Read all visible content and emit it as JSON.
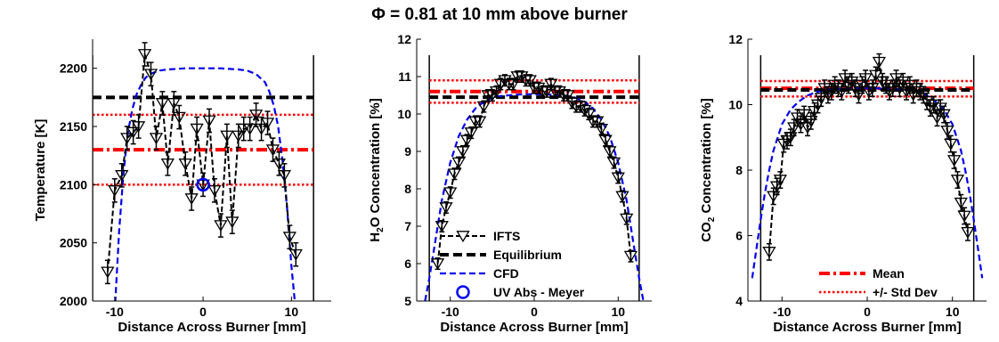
{
  "figure": {
    "title": "Φ = 0.81 at 10 mm above burner"
  },
  "colors": {
    "ifts": "#000000",
    "equilibrium": "#000000",
    "cfd": "#0000ee",
    "uv": "#0000ee",
    "mean": "#ff0000",
    "std": "#ff0000"
  },
  "chart_data": [
    {
      "type": "line",
      "xlabel": "Distance Across Burner [mm]",
      "ylabel": "Temperature [K]",
      "xlim": [
        -12.5,
        14.5
      ],
      "ylim": [
        2000,
        2225
      ],
      "xticks": [
        -10,
        0,
        10
      ],
      "yticks": [
        2000,
        2050,
        2100,
        2150,
        2200
      ],
      "burner_edges": [
        -12.5,
        12.5
      ],
      "equilibrium": 2175,
      "mean": 2130,
      "std_band": [
        2100,
        2160
      ],
      "uv_abs": {
        "x": 0,
        "y": 2100
      },
      "ifts": {
        "x": [
          -10.8,
          -10.0,
          -9.2,
          -8.6,
          -7.9,
          -7.3,
          -6.6,
          -5.9,
          -5.3,
          -4.6,
          -4.0,
          -3.3,
          -2.7,
          -2.0,
          -1.3,
          -0.7,
          0.0,
          0.7,
          1.3,
          2.0,
          2.7,
          3.3,
          4.0,
          4.6,
          5.3,
          6.0,
          6.6,
          7.3,
          7.9,
          8.6,
          9.2,
          9.8,
          10.5
        ],
        "y": [
          2025,
          2095,
          2108,
          2140,
          2145,
          2150,
          2212,
          2195,
          2140,
          2170,
          2118,
          2170,
          2158,
          2118,
          2088,
          2148,
          2100,
          2155,
          2095,
          2065,
          2142,
          2068,
          2142,
          2148,
          2148,
          2160,
          2148,
          2153,
          2130,
          2118,
          2108,
          2055,
          2040
        ],
        "err": [
          10,
          10,
          10,
          10,
          10,
          10,
          10,
          10,
          10,
          10,
          10,
          10,
          10,
          10,
          10,
          10,
          10,
          10,
          10,
          10,
          10,
          10,
          10,
          10,
          10,
          10,
          10,
          10,
          10,
          10,
          10,
          10,
          10
        ]
      },
      "cfd": {
        "x": [
          -10.0,
          -9.5,
          -9.0,
          -8.5,
          -8.0,
          -7.5,
          -7.0,
          -6.5,
          -6.0,
          -5.0,
          -4.0,
          -2.0,
          0.0,
          2.0,
          4.0,
          5.0,
          6.0,
          7.0,
          7.5,
          8.0,
          8.5,
          9.0,
          9.5,
          10.0,
          10.5
        ],
        "y": [
          1990,
          2060,
          2110,
          2145,
          2165,
          2178,
          2186,
          2192,
          2195,
          2198,
          2199,
          2200,
          2200,
          2200,
          2199,
          2198,
          2195,
          2188,
          2180,
          2168,
          2150,
          2120,
          2080,
          2030,
          1990
        ]
      }
    },
    {
      "type": "line",
      "xlabel": "Distance Across Burner [mm]",
      "ylabel": "H2O Concentration [%]",
      "ylabel_main": "H",
      "ylabel_sub": "2",
      "ylabel_rest": "O Concentration [%]",
      "xlim": [
        -14,
        14
      ],
      "ylim": [
        5,
        12
      ],
      "xticks": [
        -10,
        0,
        10
      ],
      "yticks": [
        5,
        6,
        7,
        8,
        9,
        10,
        11,
        12
      ],
      "burner_edges": [
        -12.5,
        12.5
      ],
      "equilibrium": 10.45,
      "mean": 10.6,
      "std_band": [
        10.3,
        10.9
      ],
      "ifts": {
        "x": [
          -11.5,
          -11.0,
          -10.5,
          -10.0,
          -9.5,
          -9.0,
          -8.5,
          -8.0,
          -7.5,
          -7.0,
          -6.5,
          -6.0,
          -5.5,
          -5.0,
          -4.5,
          -4.0,
          -3.5,
          -3.0,
          -2.5,
          -2.0,
          -1.5,
          -1.0,
          -0.5,
          0.0,
          0.5,
          1.0,
          1.5,
          2.0,
          2.5,
          3.0,
          3.5,
          4.0,
          4.5,
          5.0,
          5.5,
          6.0,
          6.5,
          7.0,
          7.5,
          8.0,
          8.5,
          9.0,
          9.5,
          10.0,
          10.5,
          11.0,
          11.5
        ],
        "y": [
          6.0,
          7.0,
          7.5,
          7.9,
          8.4,
          8.7,
          9.0,
          9.3,
          9.5,
          9.8,
          9.8,
          10.2,
          10.5,
          10.5,
          10.6,
          10.8,
          10.9,
          10.8,
          10.8,
          11.0,
          11.0,
          10.9,
          10.9,
          10.7,
          10.7,
          10.6,
          10.6,
          10.8,
          10.6,
          10.6,
          10.5,
          10.5,
          10.3,
          10.2,
          10.2,
          10.1,
          10.0,
          9.8,
          9.8,
          9.6,
          9.3,
          9.0,
          8.7,
          8.3,
          7.8,
          7.2,
          6.2
        ],
        "err": [
          0.15,
          0.15,
          0.15,
          0.15,
          0.15,
          0.15,
          0.15,
          0.15,
          0.15,
          0.15,
          0.15,
          0.15,
          0.15,
          0.15,
          0.15,
          0.15,
          0.15,
          0.15,
          0.15,
          0.15,
          0.15,
          0.15,
          0.15,
          0.15,
          0.15,
          0.15,
          0.15,
          0.15,
          0.15,
          0.15,
          0.15,
          0.15,
          0.15,
          0.15,
          0.15,
          0.15,
          0.15,
          0.15,
          0.15,
          0.15,
          0.15,
          0.15,
          0.15,
          0.15,
          0.15,
          0.15,
          0.15
        ]
      },
      "cfd": {
        "x": [
          -13.0,
          -12.5,
          -12.0,
          -11.5,
          -11.0,
          -10.0,
          -9.0,
          -8.0,
          -7.0,
          -6.0,
          -5.0,
          -4.0,
          -2.0,
          0.0,
          2.0,
          4.0,
          5.0,
          6.0,
          7.0,
          8.0,
          9.0,
          10.0,
          11.0,
          11.5,
          12.0,
          12.5,
          13.0
        ],
        "y": [
          5.0,
          5.6,
          6.3,
          7.0,
          7.7,
          8.7,
          9.4,
          9.85,
          10.15,
          10.33,
          10.43,
          10.48,
          10.52,
          10.53,
          10.52,
          10.48,
          10.43,
          10.33,
          10.15,
          9.85,
          9.4,
          8.7,
          7.7,
          7.0,
          6.3,
          5.6,
          5.0
        ]
      },
      "legend": {
        "placement": "inside-lower-center",
        "entries": [
          {
            "key": "ifts",
            "label": "IFTS"
          },
          {
            "key": "equilibrium",
            "label": "Equilibrium"
          },
          {
            "key": "cfd",
            "label": "CFD"
          },
          {
            "key": "uv",
            "label": "UV Abs - Meyer"
          }
        ]
      }
    },
    {
      "type": "line",
      "xlabel": "Distance Across Burner [mm]",
      "ylabel": "CO2 Concentration [%]",
      "ylabel_main": "CO",
      "ylabel_sub": "2",
      "ylabel_rest": " Concentration [%]",
      "xlim": [
        -14,
        14
      ],
      "ylim": [
        4,
        12
      ],
      "xticks": [
        -10,
        0,
        10
      ],
      "yticks": [
        4,
        6,
        8,
        10,
        12
      ],
      "burner_edges": [
        -12.5,
        12.5
      ],
      "equilibrium": 10.45,
      "mean": 10.5,
      "std_band": [
        10.25,
        10.72
      ],
      "ifts": {
        "x": [
          -11.5,
          -11.0,
          -10.6,
          -10.2,
          -9.8,
          -9.4,
          -9.0,
          -8.6,
          -8.2,
          -7.8,
          -7.4,
          -7.0,
          -6.6,
          -6.2,
          -5.8,
          -5.4,
          -5.0,
          -4.6,
          -4.2,
          -3.8,
          -3.4,
          -3.0,
          -2.6,
          -2.2,
          -1.8,
          -1.4,
          -1.0,
          -0.6,
          -0.2,
          0.2,
          0.6,
          1.0,
          1.4,
          1.8,
          2.2,
          2.6,
          3.0,
          3.4,
          3.8,
          4.2,
          4.6,
          5.0,
          5.4,
          5.8,
          6.2,
          6.6,
          7.0,
          7.4,
          7.8,
          8.2,
          8.6,
          9.0,
          9.4,
          9.8,
          10.2,
          10.6,
          11.0,
          11.4,
          11.8
        ],
        "y": [
          5.5,
          7.2,
          7.5,
          7.7,
          8.8,
          8.9,
          9.0,
          9.3,
          9.6,
          9.4,
          9.7,
          9.3,
          9.5,
          9.8,
          10.0,
          10.2,
          10.5,
          10.3,
          10.4,
          10.6,
          10.5,
          10.4,
          10.8,
          10.6,
          10.7,
          10.5,
          10.3,
          10.6,
          10.8,
          10.4,
          10.5,
          10.9,
          11.3,
          10.7,
          10.6,
          10.4,
          10.5,
          10.8,
          10.5,
          10.7,
          10.4,
          10.6,
          10.3,
          10.5,
          10.4,
          10.3,
          10.1,
          9.9,
          10.0,
          9.6,
          9.9,
          9.7,
          9.2,
          8.8,
          8.3,
          7.7,
          7.0,
          6.6,
          6.1
        ],
        "err": [
          0.25,
          0.25,
          0.25,
          0.25,
          0.25,
          0.25,
          0.25,
          0.25,
          0.25,
          0.25,
          0.25,
          0.25,
          0.25,
          0.25,
          0.25,
          0.25,
          0.25,
          0.25,
          0.25,
          0.25,
          0.25,
          0.25,
          0.25,
          0.25,
          0.25,
          0.25,
          0.25,
          0.25,
          0.25,
          0.25,
          0.25,
          0.25,
          0.25,
          0.25,
          0.25,
          0.25,
          0.25,
          0.25,
          0.25,
          0.25,
          0.25,
          0.25,
          0.25,
          0.25,
          0.25,
          0.25,
          0.25,
          0.25,
          0.25,
          0.25,
          0.25,
          0.25,
          0.25,
          0.25,
          0.25,
          0.25,
          0.25,
          0.25,
          0.25
        ]
      },
      "cfd": {
        "x": [
          -13.5,
          -13.0,
          -12.5,
          -12.0,
          -11.5,
          -11.0,
          -10.0,
          -9.0,
          -8.0,
          -7.0,
          -6.0,
          -5.0,
          -4.0,
          -2.0,
          0.0,
          2.0,
          4.0,
          5.0,
          6.0,
          7.0,
          8.0,
          9.0,
          10.0,
          11.0,
          11.5,
          12.0,
          12.5,
          13.0,
          13.5
        ],
        "y": [
          4.7,
          5.6,
          6.5,
          7.3,
          8.0,
          8.6,
          9.4,
          9.85,
          10.1,
          10.28,
          10.38,
          10.44,
          10.47,
          10.5,
          10.5,
          10.5,
          10.47,
          10.44,
          10.38,
          10.28,
          10.1,
          9.85,
          9.4,
          8.6,
          8.0,
          7.3,
          6.5,
          5.6,
          4.7
        ]
      },
      "legend": {
        "placement": "inside-lower-center",
        "entries": [
          {
            "key": "mean",
            "label": "Mean"
          },
          {
            "key": "std",
            "label": "+/- Std Dev"
          }
        ]
      }
    }
  ]
}
